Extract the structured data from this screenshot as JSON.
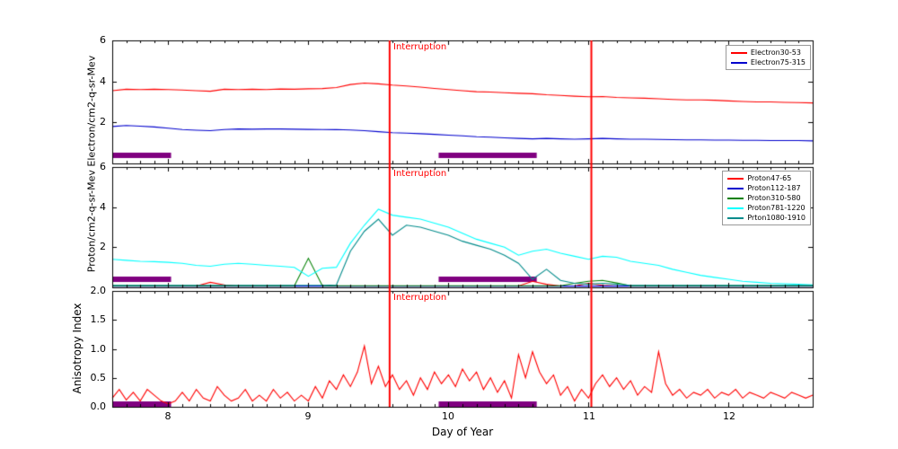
{
  "figure": {
    "xlabel": "Day of Year",
    "ylabel_top": "Proton/cm2-q-sr-Mev Electron/cm2-q-sr-Mev",
    "ylabel_bottom": "Anisotropy Index",
    "interruption_label": "Interruption",
    "interruption_color": "#ff0000",
    "interruption_days": [
      9.58,
      11.02
    ],
    "bar_color": "#800080",
    "bar_intervals": [
      [
        7.6,
        8.02
      ],
      [
        9.93,
        10.63
      ]
    ],
    "xlim": [
      7.6,
      12.6
    ],
    "xticks": [
      8,
      9,
      10,
      11,
      12
    ],
    "xtick_labels": [
      "8",
      "9",
      "10",
      "11",
      "12"
    ]
  },
  "chart_data": [
    {
      "type": "line",
      "panel": "electron-flux",
      "ylim": [
        0,
        6
      ],
      "yticks": [
        6,
        4,
        2
      ],
      "ytick_labels": [
        "6",
        "4",
        "2"
      ],
      "x_start": 7.6,
      "x_step": 0.1,
      "legend_position": "upper right",
      "series": [
        {
          "name": "Electron30-53",
          "color": "#ff0000",
          "values": [
            3.55,
            3.62,
            3.6,
            3.62,
            3.6,
            3.58,
            3.55,
            3.52,
            3.62,
            3.6,
            3.62,
            3.6,
            3.63,
            3.62,
            3.64,
            3.65,
            3.7,
            3.85,
            3.92,
            3.88,
            3.82,
            3.78,
            3.72,
            3.66,
            3.6,
            3.55,
            3.5,
            3.48,
            3.45,
            3.42,
            3.4,
            3.35,
            3.32,
            3.28,
            3.25,
            3.26,
            3.22,
            3.2,
            3.18,
            3.15,
            3.12,
            3.1,
            3.1,
            3.08,
            3.05,
            3.02,
            3.0,
            3.0,
            2.98,
            2.97,
            2.95
          ]
        },
        {
          "name": "Electron75-315",
          "color": "#0000cd",
          "values": [
            1.8,
            1.85,
            1.82,
            1.78,
            1.72,
            1.65,
            1.62,
            1.6,
            1.65,
            1.68,
            1.67,
            1.68,
            1.68,
            1.67,
            1.66,
            1.65,
            1.65,
            1.63,
            1.6,
            1.55,
            1.5,
            1.48,
            1.45,
            1.42,
            1.38,
            1.35,
            1.3,
            1.28,
            1.25,
            1.22,
            1.2,
            1.22,
            1.2,
            1.18,
            1.2,
            1.22,
            1.2,
            1.18,
            1.18,
            1.17,
            1.16,
            1.15,
            1.15,
            1.14,
            1.14,
            1.13,
            1.13,
            1.12,
            1.12,
            1.12,
            1.1
          ]
        }
      ]
    },
    {
      "type": "line",
      "panel": "proton-flux",
      "ylim": [
        0,
        6
      ],
      "yticks": [
        6,
        4,
        2
      ],
      "ytick_labels": [
        "6",
        "4",
        "2"
      ],
      "x_start": 7.6,
      "x_step": 0.1,
      "legend_position": "upper right",
      "series": [
        {
          "name": "Proton47-65",
          "color": "#ff0000",
          "values": [
            0.07,
            0.07,
            0.07,
            0.07,
            0.07,
            0.07,
            0.07,
            0.25,
            0.12,
            0.07,
            0.07,
            0.07,
            0.07,
            0.07,
            0.07,
            0.07,
            0.07,
            0.07,
            0.07,
            0.07,
            0.07,
            0.07,
            0.07,
            0.07,
            0.07,
            0.07,
            0.07,
            0.07,
            0.07,
            0.07,
            0.3,
            0.15,
            0.07,
            0.07,
            0.2,
            0.1,
            0.07,
            0.07,
            0.07,
            0.07,
            0.07,
            0.07,
            0.07,
            0.07,
            0.07,
            0.07,
            0.07,
            0.07,
            0.07,
            0.07,
            0.07
          ]
        },
        {
          "name": "Proton112-187",
          "color": "#0000cd",
          "values": [
            0.06,
            0.06,
            0.06,
            0.06,
            0.06,
            0.06,
            0.06,
            0.06,
            0.06,
            0.06,
            0.06,
            0.06,
            0.06,
            0.06,
            0.06,
            0.06,
            0.06,
            0.06,
            0.06,
            0.06,
            0.06,
            0.06,
            0.06,
            0.06,
            0.06,
            0.06,
            0.06,
            0.06,
            0.06,
            0.06,
            0.06,
            0.06,
            0.06,
            0.06,
            0.06,
            0.06,
            0.06,
            0.06,
            0.06,
            0.06,
            0.06,
            0.06,
            0.06,
            0.06,
            0.06,
            0.06,
            0.06,
            0.06,
            0.06,
            0.06,
            0.06
          ]
        },
        {
          "name": "Proton310-580",
          "color": "#008000",
          "values": [
            0.08,
            0.08,
            0.08,
            0.08,
            0.08,
            0.08,
            0.08,
            0.08,
            0.08,
            0.08,
            0.08,
            0.08,
            0.08,
            0.08,
            1.45,
            0.08,
            0.08,
            0.08,
            0.08,
            0.08,
            0.08,
            0.08,
            0.08,
            0.08,
            0.08,
            0.08,
            0.08,
            0.08,
            0.08,
            0.08,
            0.08,
            0.08,
            0.08,
            0.2,
            0.3,
            0.35,
            0.22,
            0.08,
            0.08,
            0.08,
            0.08,
            0.08,
            0.08,
            0.08,
            0.08,
            0.08,
            0.08,
            0.08,
            0.08,
            0.08,
            0.08
          ]
        },
        {
          "name": "Proton781-1220",
          "color": "#00ffff",
          "values": [
            1.4,
            1.35,
            1.3,
            1.28,
            1.25,
            1.2,
            1.1,
            1.05,
            1.15,
            1.2,
            1.15,
            1.1,
            1.05,
            1.0,
            0.55,
            0.95,
            1.0,
            2.2,
            3.1,
            3.9,
            3.6,
            3.5,
            3.4,
            3.2,
            3.0,
            2.7,
            2.4,
            2.2,
            2.0,
            1.6,
            1.8,
            1.9,
            1.7,
            1.55,
            1.4,
            1.55,
            1.5,
            1.3,
            1.2,
            1.1,
            0.9,
            0.75,
            0.6,
            0.5,
            0.4,
            0.3,
            0.25,
            0.2,
            0.18,
            0.15,
            0.12
          ]
        },
        {
          "name": "Prton1080-1910",
          "color": "#008b8b",
          "values": [
            0.1,
            0.1,
            0.1,
            0.1,
            0.1,
            0.1,
            0.1,
            0.1,
            0.1,
            0.1,
            0.1,
            0.1,
            0.1,
            0.1,
            0.1,
            0.1,
            0.12,
            1.8,
            2.8,
            3.4,
            2.6,
            3.1,
            3.0,
            2.8,
            2.6,
            2.3,
            2.1,
            1.9,
            1.6,
            1.2,
            0.4,
            0.9,
            0.35,
            0.2,
            0.15,
            0.2,
            0.15,
            0.1,
            0.1,
            0.1,
            0.1,
            0.1,
            0.1,
            0.1,
            0.1,
            0.1,
            0.1,
            0.1,
            0.1,
            0.1,
            0.1
          ]
        }
      ]
    },
    {
      "type": "line",
      "panel": "anisotropy",
      "ylim": [
        0,
        2
      ],
      "yticks": [
        2.0,
        1.5,
        1.0,
        0.5,
        0.0
      ],
      "ytick_labels": [
        "2.0",
        "1.5",
        "1.0",
        "0.5",
        "0.0"
      ],
      "x_start": 7.6,
      "x_step": 0.05,
      "series": [
        {
          "name": "Anisotropy Index",
          "color": "#ff0000",
          "values": [
            0.15,
            0.3,
            0.12,
            0.25,
            0.1,
            0.3,
            0.2,
            0.1,
            0.05,
            0.1,
            0.25,
            0.1,
            0.3,
            0.15,
            0.1,
            0.35,
            0.2,
            0.1,
            0.15,
            0.3,
            0.1,
            0.2,
            0.1,
            0.3,
            0.15,
            0.25,
            0.1,
            0.2,
            0.1,
            0.35,
            0.15,
            0.45,
            0.3,
            0.55,
            0.35,
            0.6,
            1.05,
            0.4,
            0.7,
            0.35,
            0.55,
            0.3,
            0.45,
            0.2,
            0.5,
            0.3,
            0.6,
            0.4,
            0.55,
            0.35,
            0.65,
            0.45,
            0.6,
            0.3,
            0.5,
            0.25,
            0.45,
            0.15,
            0.9,
            0.5,
            0.95,
            0.6,
            0.4,
            0.55,
            0.2,
            0.35,
            0.1,
            0.3,
            0.15,
            0.4,
            0.55,
            0.35,
            0.5,
            0.3,
            0.45,
            0.2,
            0.35,
            0.25,
            0.95,
            0.4,
            0.2,
            0.3,
            0.15,
            0.25,
            0.2,
            0.3,
            0.15,
            0.25,
            0.2,
            0.3,
            0.15,
            0.25,
            0.2,
            0.15,
            0.25,
            0.2,
            0.15,
            0.25,
            0.2,
            0.15,
            0.2
          ]
        }
      ]
    }
  ]
}
